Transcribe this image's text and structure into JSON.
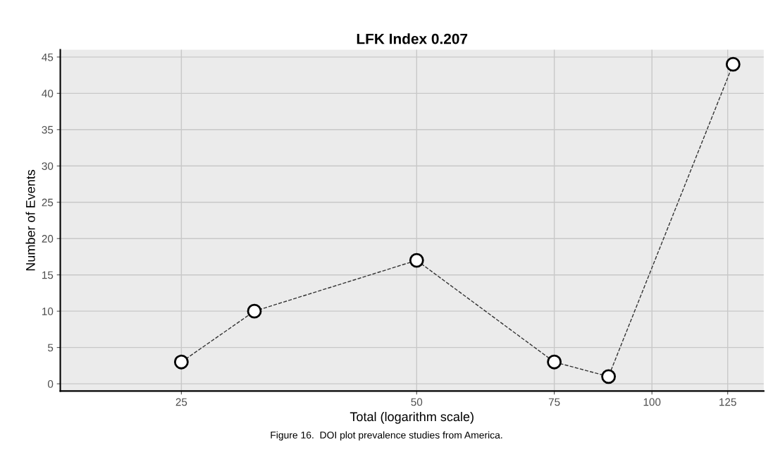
{
  "chart_data": {
    "type": "line",
    "title": "LFK Index 0.207",
    "xlabel": "Total (logarithm scale)",
    "ylabel": "Number of Events",
    "x": [
      25,
      31,
      50,
      75,
      88,
      127
    ],
    "series": [
      {
        "color": "#333333",
        "values": [
          3,
          10,
          17,
          3,
          1,
          44
        ]
      }
    ],
    "log": "x",
    "xlim": [
      17.5,
      139
    ],
    "xticks": [
      25,
      50,
      75,
      100,
      125
    ],
    "ylim": [
      -1,
      46
    ],
    "yticks": [
      0,
      5,
      10,
      15,
      20,
      25,
      30,
      35,
      40,
      45
    ],
    "grid": true,
    "marker": "circle",
    "line_style": "dashed",
    "annotations": [
      "Figure 16.  DOI plot prevalence studies from America."
    ]
  }
}
